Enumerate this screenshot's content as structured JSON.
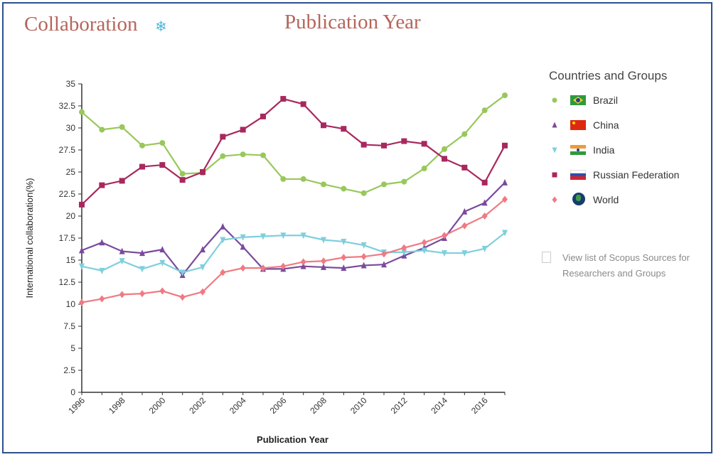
{
  "header": {
    "title_left": "Collaboration",
    "title_center": "Publication Year",
    "settings_icon": "gear-icon"
  },
  "legend": {
    "title": "Countries and Groups",
    "items": [
      {
        "label": "Brazil",
        "marker": "circle",
        "color": "#99c85a",
        "flag": "brazil-flag-icon"
      },
      {
        "label": "China",
        "marker": "triangle-up",
        "color": "#7a4a9c",
        "flag": "china-flag-icon"
      },
      {
        "label": "India",
        "marker": "triangle-down",
        "color": "#7fcfdc",
        "flag": "india-flag-icon"
      },
      {
        "label": "Russian Federation",
        "marker": "square",
        "color": "#a8285e",
        "flag": "russia-flag-icon"
      },
      {
        "label": "World",
        "marker": "diamond",
        "color": "#f07a82",
        "flag": "globe-icon"
      }
    ]
  },
  "sources_link": {
    "line1": "View list of Scopus Sources for",
    "line2": "Researchers and Groups"
  },
  "chart_data": {
    "type": "line",
    "xlabel": "Publication Year",
    "ylabel": "International collaboration(%)",
    "ylim": [
      0,
      35
    ],
    "yticks": [
      "0",
      "2.5",
      "5",
      "7.5",
      "10",
      "12.5",
      "15",
      "17.5",
      "20",
      "22.5",
      "25",
      "27.5",
      "30",
      "32.5",
      "35"
    ],
    "xticks": [
      "1996",
      "1998",
      "2000",
      "2002",
      "2004",
      "2006",
      "2008",
      "2010",
      "2012",
      "2014",
      "2016"
    ],
    "x": [
      1996,
      1997,
      1998,
      1999,
      2000,
      2001,
      2002,
      2003,
      2004,
      2005,
      2006,
      2007,
      2008,
      2009,
      2010,
      2011,
      2012,
      2013,
      2014,
      2015,
      2016,
      2017
    ],
    "grid": false,
    "legend_position": "right",
    "series": [
      {
        "name": "Brazil",
        "color": "#99c85a",
        "marker": "circle",
        "values": [
          31.8,
          29.8,
          30.1,
          28.0,
          28.3,
          24.8,
          24.9,
          26.8,
          27.0,
          26.9,
          24.2,
          24.2,
          23.6,
          23.1,
          22.6,
          23.6,
          23.9,
          25.4,
          27.6,
          29.3,
          32.0,
          33.7
        ]
      },
      {
        "name": "China",
        "color": "#7a4a9c",
        "marker": "triangle-up",
        "values": [
          16.1,
          17.0,
          16.0,
          15.8,
          16.2,
          13.3,
          16.2,
          18.8,
          16.5,
          14.0,
          14.0,
          14.3,
          14.2,
          14.1,
          14.4,
          14.5,
          15.5,
          16.4,
          17.5,
          20.5,
          21.5,
          23.8
        ]
      },
      {
        "name": "India",
        "color": "#7fcfdc",
        "marker": "triangle-down",
        "values": [
          14.3,
          13.8,
          14.9,
          14.0,
          14.7,
          13.6,
          14.2,
          17.3,
          17.6,
          17.7,
          17.8,
          17.8,
          17.3,
          17.1,
          16.7,
          15.9,
          15.9,
          16.1,
          15.8,
          15.8,
          16.3,
          18.1
        ]
      },
      {
        "name": "Russian Federation",
        "color": "#a8285e",
        "marker": "square",
        "values": [
          21.3,
          23.5,
          24.0,
          25.6,
          25.8,
          24.1,
          25.0,
          29.0,
          29.8,
          31.3,
          33.3,
          32.7,
          30.3,
          29.9,
          28.1,
          28.0,
          28.5,
          28.2,
          26.5,
          25.5,
          23.8,
          28.0
        ]
      },
      {
        "name": "World",
        "color": "#f07a82",
        "marker": "diamond",
        "values": [
          10.2,
          10.6,
          11.1,
          11.2,
          11.5,
          10.8,
          11.4,
          13.6,
          14.1,
          14.1,
          14.3,
          14.8,
          14.9,
          15.3,
          15.4,
          15.7,
          16.4,
          17.0,
          17.8,
          18.9,
          20.0,
          21.9
        ]
      }
    ]
  }
}
